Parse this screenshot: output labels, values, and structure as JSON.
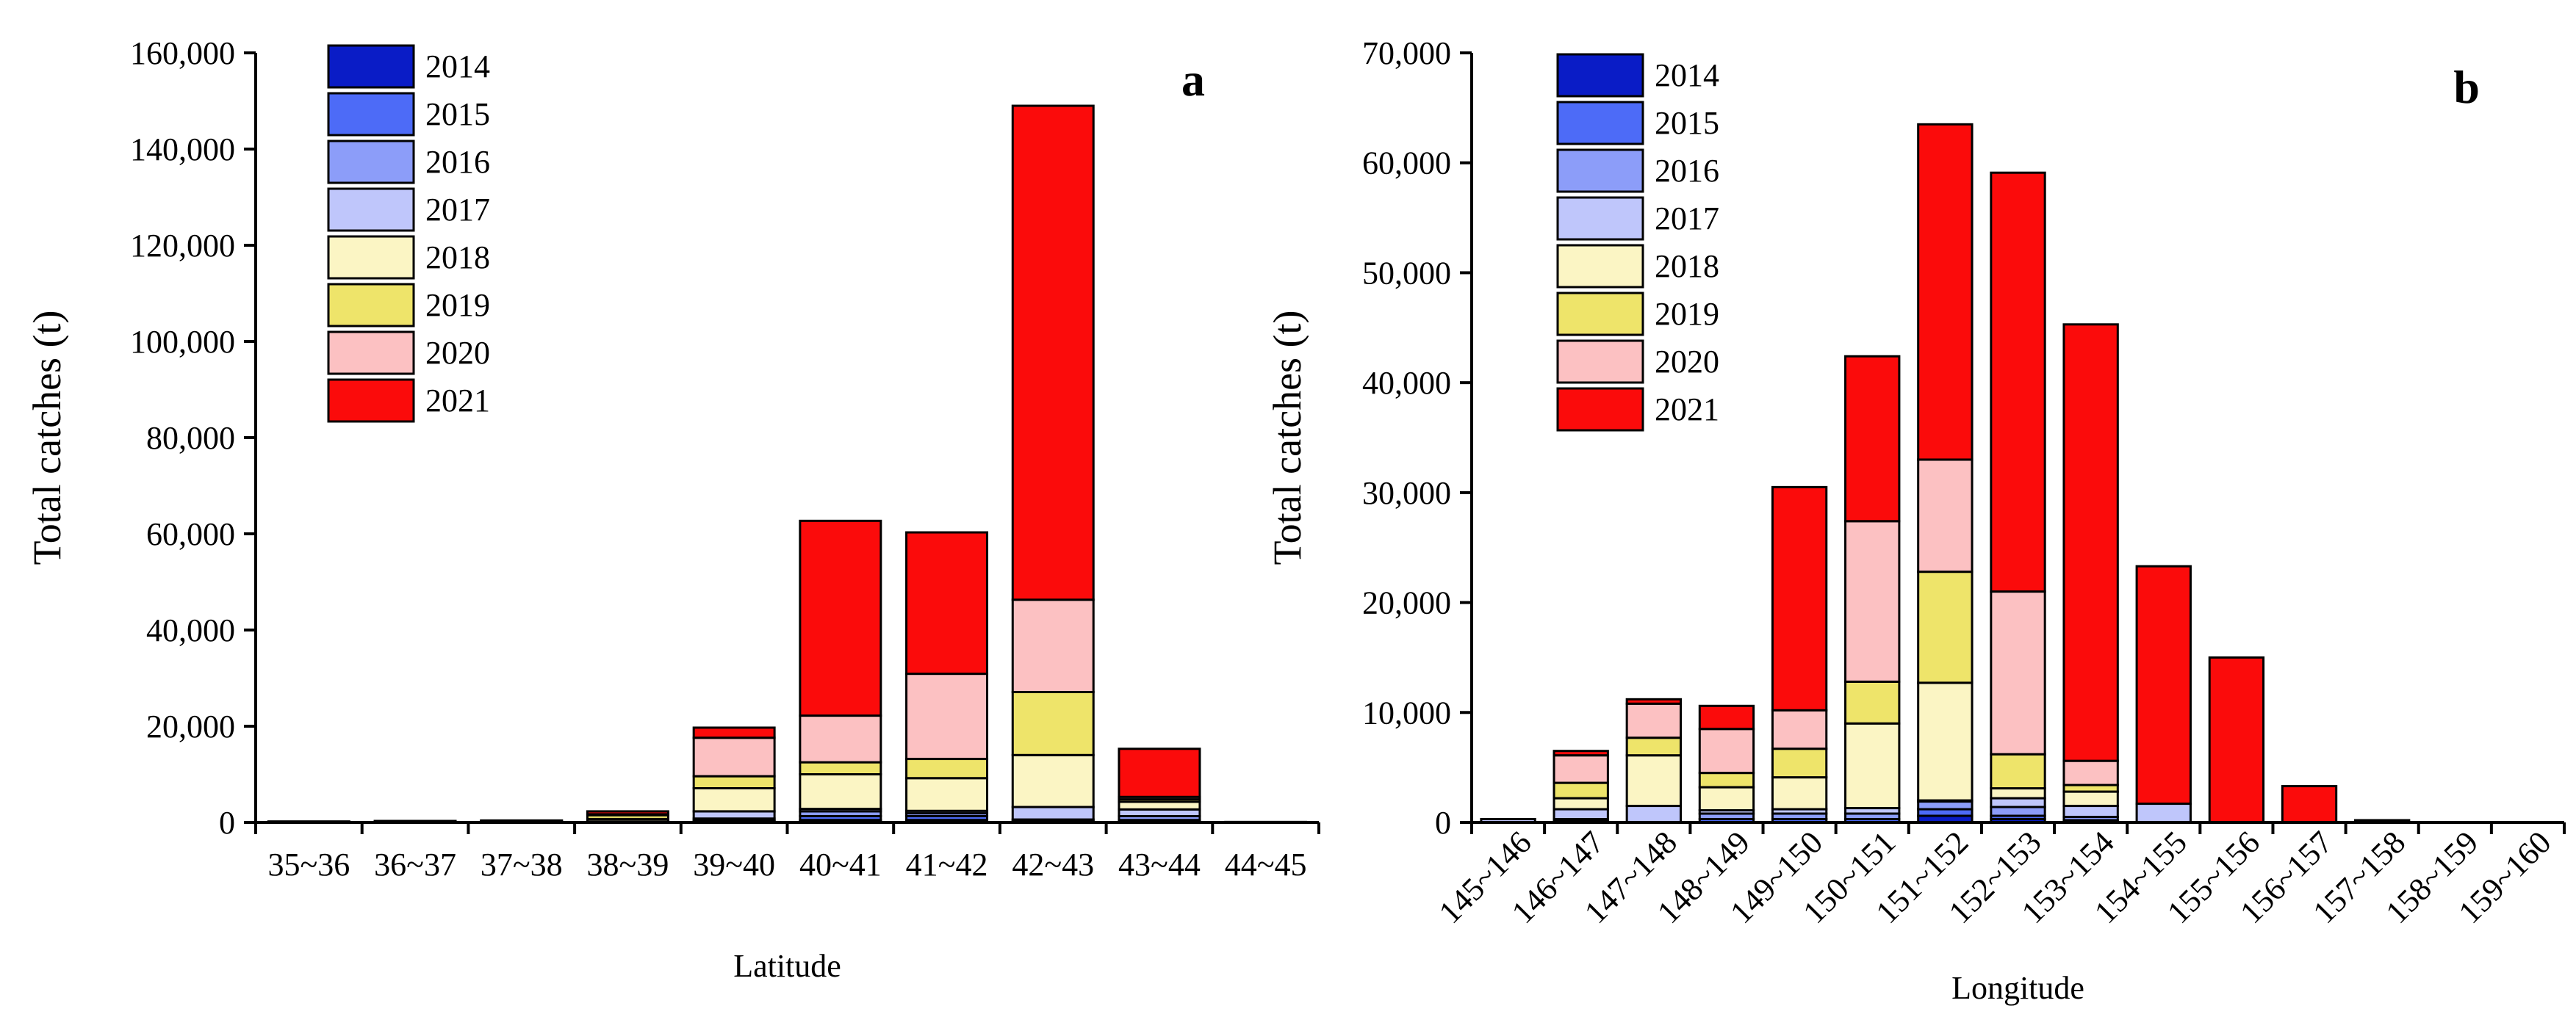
{
  "figure": {
    "ylabel": "Total catches (t)"
  },
  "legend": {
    "years": [
      "2014",
      "2015",
      "2016",
      "2017",
      "2018",
      "2019",
      "2020",
      "2021"
    ],
    "colors": [
      "#0A1CC6",
      "#4D6BF7",
      "#8C9DF9",
      "#BFC6FB",
      "#FBF5C4",
      "#EEE46A",
      "#FCC1C2",
      "#FB0B0B"
    ]
  },
  "chart_data": [
    {
      "type": "bar",
      "stacked": true,
      "panel_label": "a",
      "xlabel": "Latitude",
      "ylabel": "Total catches (t)",
      "ylim": [
        0,
        160000
      ],
      "yticks": [
        0,
        20000,
        40000,
        60000,
        80000,
        100000,
        120000,
        140000,
        160000
      ],
      "ytick_labels": [
        "0",
        "20,000",
        "40,000",
        "60,000",
        "80,000",
        "100,000",
        "120,000",
        "140,000",
        "160,000"
      ],
      "categories": [
        "35~36",
        "36~37",
        "37~38",
        "38~39",
        "39~40",
        "40~41",
        "41~42",
        "42~43",
        "43~44",
        "44~45"
      ],
      "series": [
        {
          "name": "2014",
          "values": [
            0,
            0,
            0,
            0,
            200,
            500,
            500,
            0,
            0,
            0
          ]
        },
        {
          "name": "2015",
          "values": [
            0,
            0,
            0,
            0,
            200,
            800,
            800,
            300,
            500,
            0
          ]
        },
        {
          "name": "2016",
          "values": [
            0,
            0,
            0,
            0,
            400,
            1000,
            600,
            300,
            800,
            0
          ]
        },
        {
          "name": "2017",
          "values": [
            200,
            200,
            200,
            200,
            1500,
            500,
            500,
            2600,
            1400,
            100
          ]
        },
        {
          "name": "2018",
          "values": [
            0,
            100,
            100,
            500,
            4800,
            7200,
            6800,
            10800,
            1600,
            0
          ]
        },
        {
          "name": "2019",
          "values": [
            0,
            0,
            100,
            800,
            2500,
            2500,
            4000,
            13100,
            500,
            0
          ]
        },
        {
          "name": "2020",
          "values": [
            0,
            0,
            0,
            200,
            8000,
            9700,
            17700,
            19200,
            500,
            0
          ]
        },
        {
          "name": "2021",
          "values": [
            0,
            0,
            0,
            600,
            2100,
            40500,
            29400,
            102700,
            10000,
            0
          ]
        }
      ]
    },
    {
      "type": "bar",
      "stacked": true,
      "panel_label": "b",
      "xlabel": "Longitude",
      "ylabel": "Total catches (t)",
      "ylim": [
        0,
        70000
      ],
      "yticks": [
        0,
        10000,
        20000,
        30000,
        40000,
        50000,
        60000,
        70000
      ],
      "ytick_labels": [
        "0",
        "10,000",
        "20,000",
        "30,000",
        "40,000",
        "50,000",
        "60,000",
        "70,000"
      ],
      "categories": [
        "145~146",
        "146~147",
        "147~148",
        "148~149",
        "149~150",
        "150~151",
        "151~152",
        "152~153",
        "153~154",
        "154~155",
        "155~156",
        "156~157",
        "157~158",
        "158~159",
        "159~160"
      ],
      "series": [
        {
          "name": "2014",
          "values": [
            0,
            0,
            0,
            0,
            0,
            0,
            600,
            300,
            0,
            0,
            0,
            0,
            0,
            0,
            0
          ]
        },
        {
          "name": "2015",
          "values": [
            0,
            100,
            0,
            300,
            300,
            300,
            600,
            300,
            200,
            0,
            0,
            0,
            0,
            0,
            0
          ]
        },
        {
          "name": "2016",
          "values": [
            0,
            200,
            0,
            500,
            500,
            500,
            700,
            800,
            300,
            0,
            0,
            0,
            0,
            0,
            0
          ]
        },
        {
          "name": "2017",
          "values": [
            300,
            900,
            1500,
            300,
            400,
            500,
            100,
            800,
            1000,
            1700,
            0,
            0,
            0,
            0,
            0
          ]
        },
        {
          "name": "2018",
          "values": [
            0,
            1000,
            4600,
            2100,
            2900,
            7700,
            10700,
            900,
            1300,
            0,
            0,
            0,
            0,
            0,
            0
          ]
        },
        {
          "name": "2019",
          "values": [
            0,
            1400,
            1600,
            1300,
            2600,
            3800,
            10100,
            3100,
            600,
            0,
            0,
            0,
            0,
            0,
            0
          ]
        },
        {
          "name": "2020",
          "values": [
            0,
            2500,
            3100,
            4000,
            3500,
            14600,
            10200,
            14800,
            2200,
            0,
            0,
            0,
            0,
            0,
            0
          ]
        },
        {
          "name": "2021",
          "values": [
            0,
            400,
            400,
            2100,
            20300,
            15000,
            30500,
            38100,
            39700,
            21600,
            15000,
            3300,
            200,
            0,
            0
          ]
        }
      ]
    }
  ]
}
